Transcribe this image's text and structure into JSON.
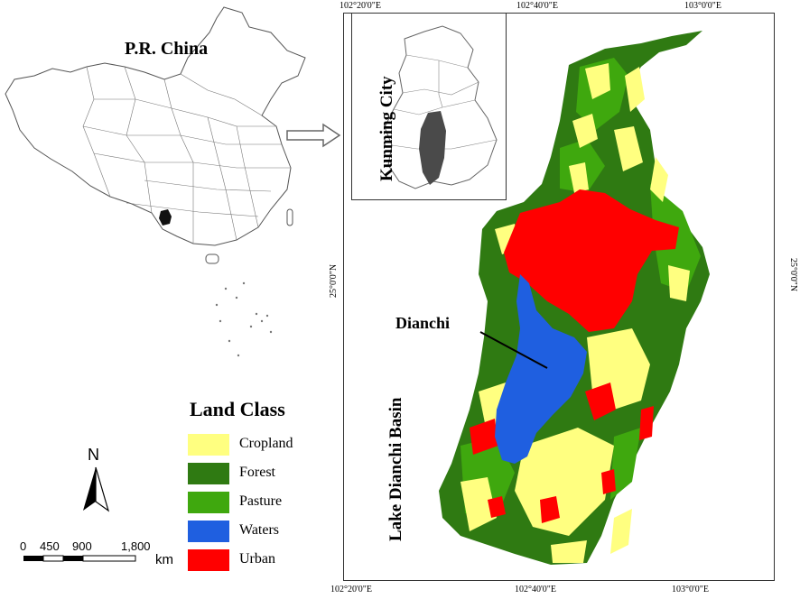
{
  "china_label": "P.R. China",
  "inset": {
    "title": "Kunming City"
  },
  "basin": {
    "lake_label": "Dianchi",
    "basin_label": "Lake Dianchi Basin"
  },
  "coords": {
    "top": [
      "102°20'0\"E",
      "102°40'0\"E",
      "103°0'0\"E"
    ],
    "bottom": [
      "102°20'0\"E",
      "102°40'0\"E",
      "103°0'0\"E"
    ],
    "left": "25°0'0\"N",
    "right": "25°0'0\"N"
  },
  "legend": {
    "title": "Land Class",
    "items": [
      {
        "label": "Cropland",
        "color": "#ffff80"
      },
      {
        "label": "Forest",
        "color": "#2f7a12"
      },
      {
        "label": "Pasture",
        "color": "#3fa80e"
      },
      {
        "label": "Waters",
        "color": "#1f5fe0"
      },
      {
        "label": "Urban",
        "color": "#ff0000"
      }
    ]
  },
  "north_label": "N",
  "scale_bar": {
    "labels": [
      "0",
      "450",
      "900",
      "1,800"
    ],
    "unit": "km"
  },
  "colors": {
    "highlight": "#4a4a4a",
    "outline": "#555555"
  }
}
